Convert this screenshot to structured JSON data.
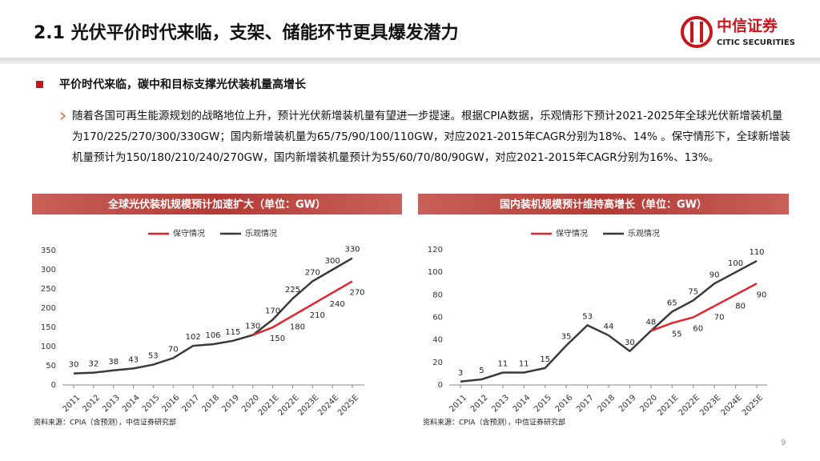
{
  "header": {
    "title": "2.1 光伏平价时代来临，支架、储能环节更具爆发潜力",
    "logo_cn": "中信证券",
    "logo_en": "CITIC SECURITIES"
  },
  "bullet": "平价时代来临，碳中和目标支撑光伏装机量高增长",
  "paragraph": "随着各国可再生能源规划的战略地位上升，预计光伏新增装机量有望进一步提速。根据CPIA数据，乐观情形下预计2021-2025年全球光伏新增装机量为170/225/270/300/330GW；国内新增装机量为65/75/90/100/110GW，对应2021-2015年CAGR分别为18%、14% 。保守情形下，全球新增装机量预计为150/180/210/240/270GW，国内新增装机量预计为55/60/70/80/90GW，对应2021-2015年CAGR分别为16%、13%。",
  "page_number": "9",
  "chart_data": [
    {
      "type": "line",
      "title": "全球光伏装机规模预计加速扩大（单位：GW）",
      "source": "资料来源：CPIA（含预测），中信证券研究部",
      "categories": [
        "2011",
        "2012",
        "2013",
        "2014",
        "2015",
        "2016",
        "2017",
        "2018",
        "2019",
        "2020",
        "2021E",
        "2022E",
        "2023E",
        "2024E",
        "2025E"
      ],
      "series": [
        {
          "name": "保守情况",
          "color": "#e0262c",
          "values": [
            null,
            null,
            null,
            null,
            null,
            null,
            null,
            null,
            null,
            130,
            150,
            180,
            210,
            240,
            270
          ]
        },
        {
          "name": "乐观情况",
          "color": "#3a3a3a",
          "values": [
            30,
            32,
            38,
            43,
            53,
            70,
            102,
            106,
            115,
            130,
            170,
            225,
            270,
            300,
            330
          ]
        }
      ],
      "ylim": [
        0,
        350
      ],
      "yticks": [
        0,
        50,
        100,
        150,
        200,
        250,
        300,
        350
      ]
    },
    {
      "type": "line",
      "title": "国内装机规模预计维持高增长（单位：GW）",
      "source": "资料来源：CPIA（含预测），中信证券研究部",
      "categories": [
        "2011",
        "2012",
        "2013",
        "2014",
        "2015",
        "2016",
        "2017",
        "2018",
        "2019",
        "2020",
        "2021E",
        "2022E",
        "2023E",
        "2024E",
        "2025E"
      ],
      "series": [
        {
          "name": "保守情况",
          "color": "#e0262c",
          "values": [
            null,
            null,
            null,
            null,
            null,
            null,
            null,
            null,
            null,
            48,
            55,
            60,
            70,
            80,
            90
          ]
        },
        {
          "name": "乐观情况",
          "color": "#3a3a3a",
          "values": [
            3,
            5,
            11,
            11,
            15,
            35,
            53,
            44,
            30,
            48,
            65,
            75,
            90,
            100,
            110
          ]
        }
      ],
      "ylim": [
        0,
        120
      ],
      "yticks": [
        0,
        20,
        40,
        60,
        80,
        100,
        120
      ]
    }
  ]
}
